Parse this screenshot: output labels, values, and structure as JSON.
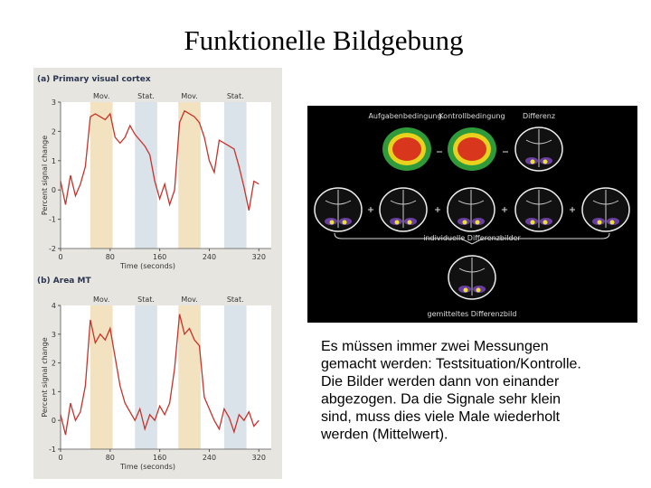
{
  "title": "Funktionelle Bildgebung",
  "figure": {
    "panels": [
      {
        "title": "(a) Primary visual cortex",
        "ylabel": "Percent signal change",
        "xlabel": "Time (seconds)",
        "bands": [
          {
            "label": "Mov.",
            "start": 48,
            "end": 84,
            "color": "#f3e2bf"
          },
          {
            "label": "Stat.",
            "start": 120,
            "end": 156,
            "color": "#dbe3ea"
          },
          {
            "label": "Mov.",
            "start": 190,
            "end": 226,
            "color": "#f3e2bf"
          },
          {
            "label": "Stat.",
            "start": 264,
            "end": 300,
            "color": "#dbe3ea"
          }
        ],
        "xlim": [
          0,
          340
        ],
        "ylim": [
          -2,
          3
        ],
        "xticks": [
          0,
          80,
          160,
          240,
          320
        ],
        "yticks": [
          -2,
          -1,
          0,
          1,
          2,
          3
        ],
        "color": "#c8322a",
        "x": [
          0,
          8,
          16,
          24,
          32,
          40,
          48,
          56,
          64,
          72,
          80,
          88,
          96,
          104,
          112,
          120,
          128,
          136,
          144,
          152,
          160,
          168,
          176,
          184,
          192,
          200,
          208,
          216,
          224,
          232,
          240,
          248,
          256,
          264,
          272,
          280,
          288,
          296,
          304,
          312,
          320
        ],
        "values": [
          0.3,
          -0.5,
          0.5,
          -0.2,
          0.2,
          0.8,
          2.5,
          2.6,
          2.5,
          2.4,
          2.6,
          1.8,
          1.6,
          1.8,
          2.2,
          1.9,
          1.7,
          1.5,
          1.2,
          0.3,
          -0.3,
          0.2,
          -0.5,
          0.0,
          2.3,
          2.7,
          2.6,
          2.5,
          2.3,
          1.8,
          1.0,
          0.6,
          1.7,
          1.6,
          1.5,
          1.4,
          0.8,
          0.1,
          -0.7,
          0.3,
          0.2
        ]
      },
      {
        "title": "(b) Area MT",
        "ylabel": "Percent signal change",
        "xlabel": "Time (seconds)",
        "bands": [
          {
            "label": "Mov.",
            "start": 48,
            "end": 84,
            "color": "#f3e2bf"
          },
          {
            "label": "Stat.",
            "start": 120,
            "end": 156,
            "color": "#dbe3ea"
          },
          {
            "label": "Mov.",
            "start": 190,
            "end": 226,
            "color": "#f3e2bf"
          },
          {
            "label": "Stat.",
            "start": 264,
            "end": 300,
            "color": "#dbe3ea"
          }
        ],
        "xlim": [
          0,
          340
        ],
        "ylim": [
          -1,
          4
        ],
        "xticks": [
          0,
          80,
          160,
          240,
          320
        ],
        "yticks": [
          -1,
          0,
          1,
          2,
          3,
          4
        ],
        "color": "#c8322a",
        "x": [
          0,
          8,
          16,
          24,
          32,
          40,
          48,
          56,
          64,
          72,
          80,
          88,
          96,
          104,
          112,
          120,
          128,
          136,
          144,
          152,
          160,
          168,
          176,
          184,
          192,
          200,
          208,
          216,
          224,
          232,
          240,
          248,
          256,
          264,
          272,
          280,
          288,
          296,
          304,
          312,
          320
        ],
        "values": [
          0.2,
          -0.5,
          0.6,
          0.0,
          0.3,
          1.2,
          3.5,
          2.7,
          3.0,
          2.8,
          3.2,
          2.2,
          1.2,
          0.6,
          0.3,
          0.0,
          0.4,
          -0.3,
          0.2,
          0.0,
          0.5,
          0.2,
          0.6,
          1.8,
          3.7,
          3.0,
          3.2,
          2.8,
          2.6,
          0.8,
          0.4,
          0.0,
          -0.3,
          0.4,
          0.1,
          -0.4,
          0.2,
          0.0,
          0.3,
          -0.2,
          0.0
        ]
      }
    ]
  },
  "scan": {
    "top_labels": [
      "Aufgabenbedingung",
      "Kontrollbedingung",
      "Differenz"
    ],
    "group_label": "individuelle Differenzbilder",
    "result_label": "gemitteltes Differenzbild"
  },
  "text": {
    "lines": [
      "Es müssen immer zwei Messungen",
      "gemacht werden: Testsituation/Kontrolle.",
      "Die Bilder werden dann von einander",
      "abgezogen. Da die Signale sehr klein",
      "sind, muss dies viele Male wiederholt",
      "werden (Mittelwert)."
    ]
  }
}
